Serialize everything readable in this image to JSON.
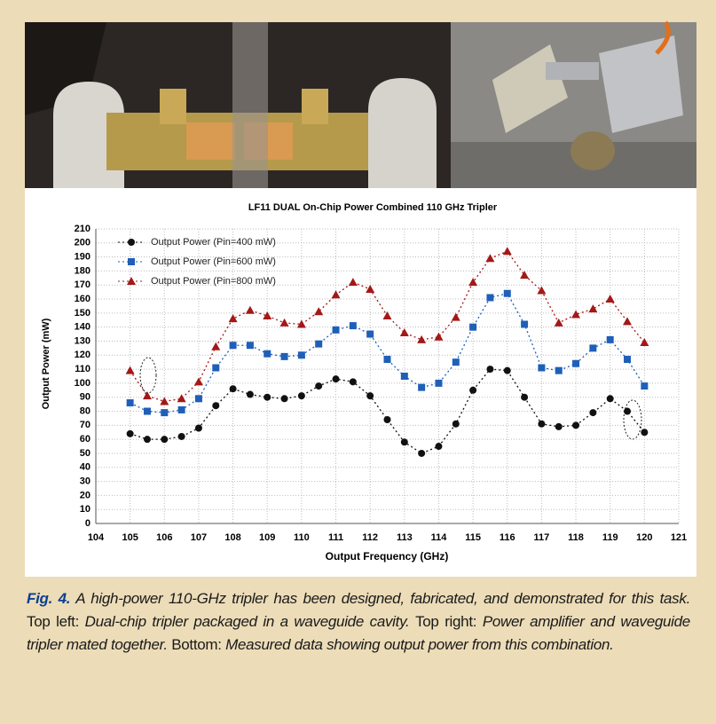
{
  "chart_data": {
    "type": "line",
    "title": "LF11 DUAL On-Chip Power Combined 110 GHz Tripler",
    "x_label": "Output Frequency (GHz)",
    "y_label": "Output Power (mW)",
    "x": [
      105,
      105.5,
      106,
      106.5,
      107,
      107.5,
      108,
      108.5,
      109,
      109.5,
      110,
      110.5,
      111,
      111.5,
      112,
      112.5,
      113,
      113.5,
      114,
      114.5,
      115,
      115.5,
      116,
      116.5,
      117,
      117.5,
      118,
      118.5,
      119,
      119.5,
      120
    ],
    "series": [
      {
        "name": "Output Power (Pin=400 mW)",
        "color": "#111111",
        "marker": "circle",
        "values": [
          64,
          60,
          60,
          62,
          68,
          84,
          96,
          92,
          90,
          89,
          91,
          98,
          103,
          101,
          91,
          74,
          58,
          50,
          55,
          71,
          95,
          110,
          109,
          90,
          71,
          69,
          70,
          79,
          89,
          80,
          65
        ]
      },
      {
        "name": "Output Power (Pin=600 mW)",
        "color": "#1f5fb8",
        "marker": "square",
        "values": [
          86,
          80,
          79,
          81,
          89,
          111,
          127,
          127,
          121,
          119,
          120,
          128,
          138,
          141,
          135,
          117,
          105,
          97,
          100,
          115,
          140,
          161,
          164,
          142,
          111,
          109,
          114,
          125,
          131,
          117,
          98
        ]
      },
      {
        "name": "Output Power (Pin=800 mW)",
        "color": "#a31818",
        "marker": "triangle",
        "values": [
          109,
          91,
          87,
          89,
          101,
          126,
          146,
          152,
          148,
          143,
          142,
          151,
          163,
          172,
          167,
          148,
          136,
          131,
          133,
          147,
          172,
          189,
          194,
          177,
          166,
          143,
          149,
          153,
          160,
          144,
          129
        ]
      }
    ],
    "xlim": [
      104,
      121
    ],
    "xticks": [
      104,
      105,
      106,
      107,
      108,
      109,
      110,
      111,
      112,
      113,
      114,
      115,
      116,
      117,
      118,
      119,
      120,
      121
    ],
    "ylim": [
      0,
      210
    ],
    "yticks": [
      0,
      10,
      20,
      30,
      40,
      50,
      60,
      70,
      80,
      90,
      100,
      110,
      120,
      130,
      140,
      150,
      160,
      170,
      180,
      190,
      200,
      210
    ],
    "grid": true,
    "legend": "top-left"
  },
  "caption": {
    "label": "Fig. 4.",
    "lead": "A high-power 110-GHz tripler has been designed, fabricated, and demonstrated for this task.",
    "parts": [
      {
        "key": "Top left:",
        "text": "Dual-chip tripler packaged in a waveguide cavity."
      },
      {
        "key": "Top right:",
        "text": "Power amplifier and waveguide tripler mated together."
      },
      {
        "key": "Bottom:",
        "text": "Measured data showing output power from this combination."
      }
    ]
  }
}
